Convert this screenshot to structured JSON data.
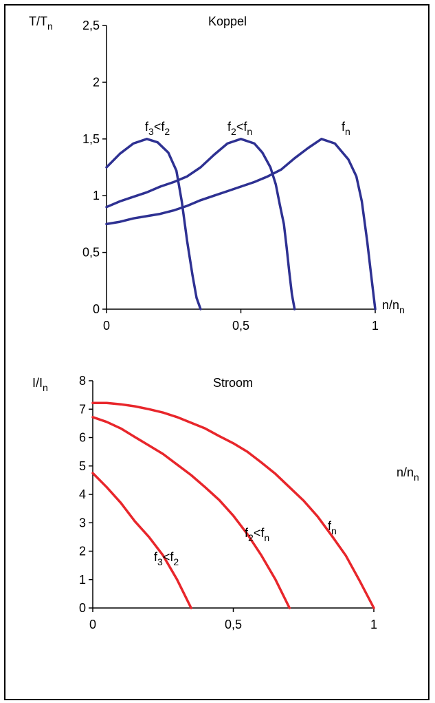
{
  "chart_data": [
    {
      "type": "line",
      "title": "Koppel",
      "ylabel": "T/Tn",
      "ylabel_sub": "n",
      "xlabel": "n/nn",
      "xlabel_sub": "n",
      "xlim": [
        0,
        1
      ],
      "ylim": [
        0,
        2.5
      ],
      "x_ticks": [
        0,
        0.5,
        1
      ],
      "x_tick_labels": [
        "0",
        "0,5",
        "1"
      ],
      "y_ticks": [
        0,
        0.5,
        1,
        1.5,
        2,
        2.5
      ],
      "y_tick_labels": [
        "0",
        "0,5",
        "1",
        "1,5",
        "2",
        "2,5"
      ],
      "color": "#2e3192",
      "grid": false,
      "series": [
        {
          "label_main": "f3<f2",
          "label_parts": [
            "f",
            "3",
            "<f",
            "2"
          ],
          "x": [
            0,
            0.05,
            0.1,
            0.15,
            0.19,
            0.23,
            0.26,
            0.28,
            0.3,
            0.32,
            0.335,
            0.35
          ],
          "y": [
            1.25,
            1.37,
            1.46,
            1.5,
            1.47,
            1.38,
            1.22,
            0.95,
            0.6,
            0.3,
            0.1,
            0
          ]
        },
        {
          "label_main": "f2<fn",
          "label_parts": [
            "f",
            "2",
            "<f",
            "n"
          ],
          "x": [
            0,
            0.05,
            0.1,
            0.15,
            0.2,
            0.25,
            0.3,
            0.35,
            0.4,
            0.45,
            0.5,
            0.55,
            0.58,
            0.61,
            0.63,
            0.645,
            0.66,
            0.67,
            0.68,
            0.69,
            0.7
          ],
          "y": [
            0.9,
            0.95,
            0.99,
            1.03,
            1.08,
            1.12,
            1.17,
            1.25,
            1.36,
            1.46,
            1.5,
            1.46,
            1.38,
            1.25,
            1.1,
            0.92,
            0.75,
            0.55,
            0.33,
            0.13,
            0
          ]
        },
        {
          "label_main": "fn",
          "label_parts": [
            "f",
            "n"
          ],
          "x": [
            0,
            0.05,
            0.1,
            0.15,
            0.2,
            0.25,
            0.3,
            0.35,
            0.4,
            0.45,
            0.5,
            0.55,
            0.6,
            0.65,
            0.7,
            0.75,
            0.8,
            0.85,
            0.9,
            0.93,
            0.95,
            0.97,
            0.985,
            1.0
          ],
          "y": [
            0.75,
            0.77,
            0.8,
            0.82,
            0.84,
            0.87,
            0.91,
            0.96,
            1.0,
            1.04,
            1.08,
            1.12,
            1.17,
            1.23,
            1.33,
            1.42,
            1.5,
            1.46,
            1.32,
            1.17,
            0.95,
            0.6,
            0.3,
            0
          ]
        }
      ]
    },
    {
      "type": "line",
      "title": "Stroom",
      "ylabel": "I/In",
      "ylabel_sub": "n",
      "xlabel": "n/nn",
      "xlabel_sub": "n",
      "xlim": [
        0,
        1
      ],
      "ylim": [
        0,
        8
      ],
      "x_ticks": [
        0,
        0.5,
        1
      ],
      "x_tick_labels": [
        "0",
        "0,5",
        "1"
      ],
      "y_ticks": [
        0,
        1,
        2,
        3,
        4,
        5,
        6,
        7,
        8
      ],
      "y_tick_labels": [
        "0",
        "1",
        "2",
        "3",
        "4",
        "5",
        "6",
        "7",
        "8"
      ],
      "color": "#e8262b",
      "grid": false,
      "series": [
        {
          "label_main": "f3<f2",
          "label_parts": [
            "f",
            "3",
            "<f",
            "2"
          ],
          "x": [
            0,
            0.05,
            0.1,
            0.15,
            0.2,
            0.25,
            0.3,
            0.35
          ],
          "y": [
            4.75,
            4.25,
            3.7,
            3.05,
            2.5,
            1.85,
            1.0,
            0
          ]
        },
        {
          "label_main": "f2<fn",
          "label_parts": [
            "f",
            "2",
            "<f",
            "n"
          ],
          "x": [
            0,
            0.05,
            0.1,
            0.15,
            0.2,
            0.25,
            0.3,
            0.35,
            0.4,
            0.45,
            0.5,
            0.55,
            0.6,
            0.65,
            0.7
          ],
          "y": [
            6.72,
            6.55,
            6.32,
            6.02,
            5.72,
            5.42,
            5.05,
            4.68,
            4.25,
            3.8,
            3.25,
            2.6,
            1.85,
            1.0,
            0
          ]
        },
        {
          "label_main": "fn",
          "label_parts": [
            "f",
            "n"
          ],
          "x": [
            0,
            0.05,
            0.1,
            0.15,
            0.2,
            0.25,
            0.3,
            0.35,
            0.4,
            0.45,
            0.5,
            0.55,
            0.6,
            0.65,
            0.7,
            0.75,
            0.8,
            0.85,
            0.9,
            0.95,
            1.0
          ],
          "y": [
            7.22,
            7.22,
            7.17,
            7.1,
            7.0,
            6.88,
            6.72,
            6.52,
            6.32,
            6.05,
            5.8,
            5.5,
            5.12,
            4.72,
            4.25,
            3.78,
            3.22,
            2.55,
            1.85,
            0.95,
            0
          ]
        }
      ]
    }
  ]
}
